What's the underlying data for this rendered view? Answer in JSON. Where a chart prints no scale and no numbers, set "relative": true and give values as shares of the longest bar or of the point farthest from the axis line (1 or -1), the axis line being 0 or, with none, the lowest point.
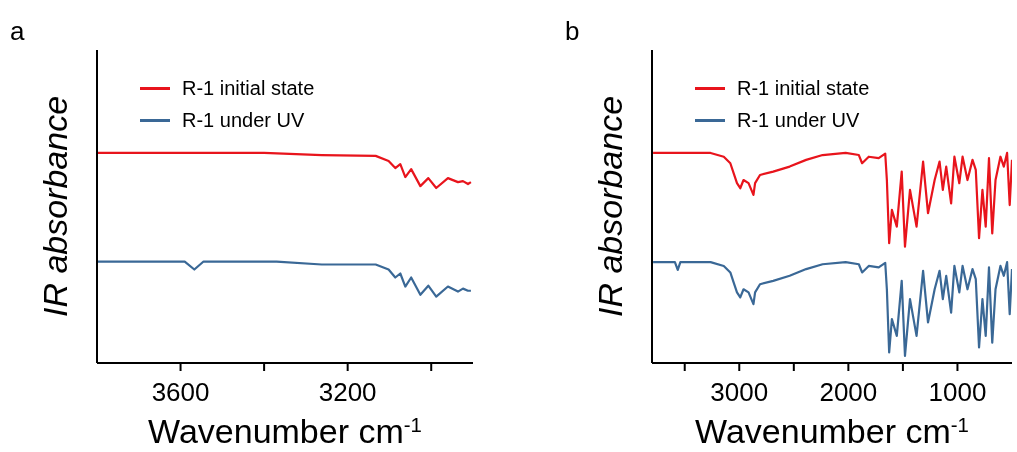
{
  "chart_data": [
    {
      "type": "line",
      "title": "a",
      "xlabel": "Wavenumber cm$^{-1}$",
      "ylabel": "IR absorbance",
      "relative": true,
      "legend": "top left",
      "tick_labels": "x",
      "xlim": [
        3800,
        2900
      ],
      "xticks": [
        3600,
        {
          "value": 3400,
          "label": null
        },
        3200,
        {
          "value": 3000,
          "label": null
        }
      ],
      "series": [
        {
          "name": "R-1 initial state",
          "color": "#e8141c",
          "x": [
            3800,
            3600,
            3400,
            3262,
            3133,
            3102,
            3086,
            3074,
            3062,
            3048,
            3026,
            3007,
            2988,
            2960,
            2936,
            2924,
            2912,
            2905
          ],
          "values": [
            1.0,
            1.0,
            1.0,
            0.99,
            0.986,
            0.962,
            0.928,
            0.947,
            0.885,
            0.923,
            0.842,
            0.88,
            0.833,
            0.88,
            0.861,
            0.866,
            0.852,
            0.861
          ]
        },
        {
          "name": "R-1 under UV",
          "color": "#3a6896",
          "x": [
            3800,
            3590,
            3567,
            3545,
            3370,
            3262,
            3133,
            3102,
            3086,
            3074,
            3062,
            3048,
            3026,
            3007,
            2988,
            2960,
            2936,
            2924,
            2912,
            2905
          ],
          "values": [
            0.483,
            0.483,
            0.445,
            0.483,
            0.483,
            0.469,
            0.469,
            0.445,
            0.407,
            0.426,
            0.364,
            0.407,
            0.325,
            0.368,
            0.316,
            0.364,
            0.34,
            0.354,
            0.344,
            0.344
          ]
        }
      ]
    },
    {
      "type": "line",
      "title": "b",
      "xlabel": "Wavenumber cm$^{-1}$",
      "ylabel": "IR absorbance",
      "relative": true,
      "legend": "top left",
      "tick_labels": "x",
      "xlim": [
        3800,
        500
      ],
      "xticks": [
        {
          "value": 3500,
          "label": null
        },
        3000,
        {
          "value": 2500,
          "label": null
        },
        2000,
        {
          "value": 1500,
          "label": null
        },
        1000
      ],
      "series": [
        {
          "name": "R-1 initial state",
          "color": "#e8141c",
          "x": [
            3790,
            3263,
            3142,
            3082,
            3051,
            3021,
            2991,
            2961,
            2915,
            2870,
            2855,
            2810,
            2689,
            2538,
            2387,
            2236,
            2025,
            1904,
            1874,
            1813,
            1722,
            1662,
            1647,
            1626,
            1601,
            1556,
            1511,
            1481,
            1435,
            1375,
            1315,
            1270,
            1209,
            1164,
            1134,
            1103,
            1058,
            1028,
            983,
            953,
            908,
            862,
            832,
            802,
            771,
            741,
            711,
            681,
            651,
            606,
            575,
            545,
            521,
            500
          ],
          "values": [
            1.0,
            1.0,
            0.982,
            0.951,
            0.903,
            0.856,
            0.832,
            0.871,
            0.856,
            0.8,
            0.856,
            0.895,
            0.911,
            0.935,
            0.967,
            0.99,
            1.0,
            0.99,
            0.951,
            0.982,
            0.975,
            0.997,
            0.871,
            0.57,
            0.729,
            0.649,
            0.911,
            0.554,
            0.824,
            0.649,
            0.959,
            0.713,
            0.871,
            0.959,
            0.824,
            0.935,
            0.76,
            0.982,
            0.856,
            0.982,
            0.871,
            0.967,
            0.919,
            0.594,
            0.824,
            0.649,
            0.975,
            0.617,
            0.871,
            0.982,
            0.935,
            1.0,
            0.752,
            0.967
          ]
        },
        {
          "name": "R-1 under UV",
          "color": "#3a6896",
          "x": [
            3790,
            3590,
            3564,
            3540,
            3263,
            3142,
            3082,
            3051,
            3021,
            2991,
            2961,
            2915,
            2870,
            2855,
            2810,
            2689,
            2538,
            2387,
            2236,
            2025,
            1904,
            1874,
            1813,
            1722,
            1662,
            1647,
            1626,
            1601,
            1556,
            1511,
            1481,
            1435,
            1375,
            1315,
            1270,
            1209,
            1164,
            1134,
            1103,
            1058,
            1028,
            983,
            953,
            908,
            862,
            832,
            802,
            771,
            741,
            711,
            681,
            651,
            606,
            575,
            545,
            521,
            500
          ],
          "values": [
            0.48,
            0.48,
            0.443,
            0.48,
            0.48,
            0.462,
            0.431,
            0.383,
            0.336,
            0.312,
            0.351,
            0.336,
            0.28,
            0.336,
            0.375,
            0.391,
            0.415,
            0.447,
            0.47,
            0.48,
            0.47,
            0.431,
            0.462,
            0.455,
            0.477,
            0.351,
            0.05,
            0.209,
            0.129,
            0.391,
            0.034,
            0.304,
            0.129,
            0.439,
            0.193,
            0.351,
            0.439,
            0.304,
            0.415,
            0.24,
            0.462,
            0.336,
            0.462,
            0.351,
            0.447,
            0.399,
            0.074,
            0.304,
            0.129,
            0.455,
            0.097,
            0.351,
            0.462,
            0.415,
            0.48,
            0.232,
            0.447
          ]
        }
      ]
    }
  ]
}
